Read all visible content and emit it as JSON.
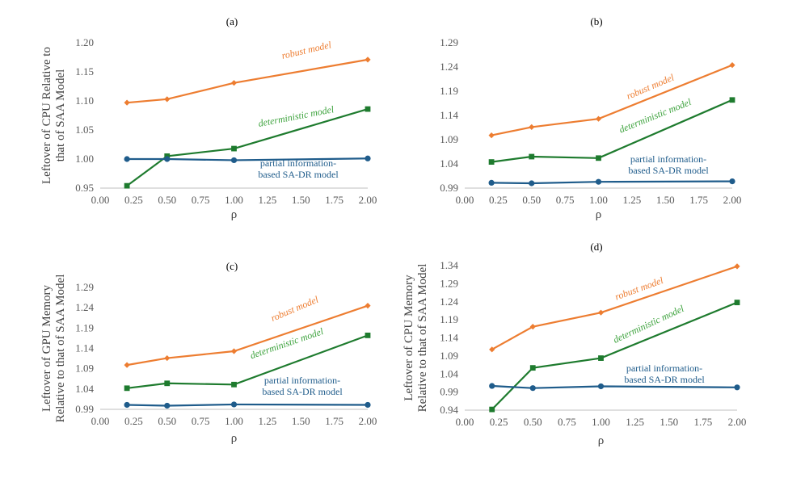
{
  "chart_data": [
    {
      "type": "line",
      "panel": "(a)",
      "xlabel": "ρ",
      "ylabel_lines": [
        "Leftover of CPU Relative to",
        "that of SAA Model"
      ],
      "xlim": [
        0,
        2
      ],
      "xticks": [
        "0.00",
        "0.25",
        "0.50",
        "0.75",
        "1.00",
        "1.25",
        "1.50",
        "1.75",
        "2.00"
      ],
      "ylim": [
        0.95,
        1.2
      ],
      "yticks": [
        "0.95",
        "1.00",
        "1.05",
        "1.10",
        "1.15",
        "1.20"
      ],
      "grid": false,
      "x": [
        0.2,
        0.5,
        1.0,
        2.0
      ],
      "series": [
        {
          "name": "robust model",
          "values": [
            1.097,
            1.103,
            1.131,
            1.171
          ],
          "color": "#ED7D31",
          "marker": "diamond"
        },
        {
          "name": "deterministic model",
          "values": [
            0.954,
            1.005,
            1.018,
            1.086
          ],
          "color": "#1E7B2E",
          "marker": "square"
        },
        {
          "name": "partial information-based SA-DR model",
          "values": [
            1.0,
            1.0,
            0.998,
            1.001
          ],
          "color": "#1F5C8B",
          "marker": "circle"
        }
      ],
      "annotations": [
        {
          "series": 0,
          "lines": [
            "robust model"
          ],
          "color": "#ED7D31",
          "italic": true
        },
        {
          "series": 1,
          "lines": [
            "deterministic model"
          ],
          "color": "#3EA33E",
          "italic": true
        },
        {
          "series": 2,
          "lines": [
            "partial information-",
            "based SA-DR model"
          ],
          "color": "#1F5C8B",
          "italic": false
        }
      ]
    },
    {
      "type": "line",
      "panel": "(b)",
      "xlabel": "ρ",
      "ylabel_lines": [],
      "xlim": [
        0,
        2
      ],
      "xticks": [
        "0.00",
        "0.25",
        "0.50",
        "0.75",
        "1.00",
        "1.25",
        "1.50",
        "1.75",
        "2.00"
      ],
      "ylim": [
        0.99,
        1.29
      ],
      "yticks": [
        "0.99",
        "1.04",
        "1.09",
        "1.14",
        "1.19",
        "1.24",
        "1.29"
      ],
      "grid": false,
      "x": [
        0.2,
        0.5,
        1.0,
        2.0
      ],
      "series": [
        {
          "name": "robust model",
          "values": [
            1.099,
            1.116,
            1.133,
            1.244
          ],
          "color": "#ED7D31",
          "marker": "diamond"
        },
        {
          "name": "deterministic model",
          "values": [
            1.044,
            1.055,
            1.052,
            1.172
          ],
          "color": "#1E7B2E",
          "marker": "square"
        },
        {
          "name": "partial information-based SA-DR model",
          "values": [
            1.001,
            1.0,
            1.003,
            1.004
          ],
          "color": "#1F5C8B",
          "marker": "circle"
        }
      ],
      "annotations": [
        {
          "series": 0,
          "lines": [
            "robust model"
          ],
          "color": "#ED7D31",
          "italic": true
        },
        {
          "series": 1,
          "lines": [
            "deterministic model"
          ],
          "color": "#3EA33E",
          "italic": true
        },
        {
          "series": 2,
          "lines": [
            "partial information-",
            "based SA-DR model"
          ],
          "color": "#1F5C8B",
          "italic": false
        }
      ]
    },
    {
      "type": "line",
      "panel": "(c)",
      "xlabel": "ρ",
      "ylabel_lines": [
        "Leftover of GPU Memory",
        "Relative to that of SAA Model"
      ],
      "xlim": [
        0,
        2
      ],
      "xticks": [
        "0.00",
        "0.25",
        "0.50",
        "0.75",
        "1.00",
        "1.25",
        "1.50",
        "1.75",
        "2.00"
      ],
      "ylim": [
        0.99,
        1.29
      ],
      "yticks": [
        "0.99",
        "1.04",
        "1.09",
        "1.14",
        "1.19",
        "1.24",
        "1.29"
      ],
      "grid": false,
      "x": [
        0.2,
        0.5,
        1.0,
        2.0
      ],
      "series": [
        {
          "name": "robust model",
          "values": [
            1.099,
            1.116,
            1.133,
            1.245
          ],
          "color": "#ED7D31",
          "marker": "diamond"
        },
        {
          "name": "deterministic model",
          "values": [
            1.042,
            1.054,
            1.051,
            1.172
          ],
          "color": "#1E7B2E",
          "marker": "square"
        },
        {
          "name": "partial information-based SA-DR model",
          "values": [
            1.001,
            0.999,
            1.002,
            1.001
          ],
          "color": "#1F5C8B",
          "marker": "circle"
        }
      ],
      "annotations": [
        {
          "series": 0,
          "lines": [
            "robust model"
          ],
          "color": "#ED7D31",
          "italic": true
        },
        {
          "series": 1,
          "lines": [
            "deterministic model"
          ],
          "color": "#3EA33E",
          "italic": true
        },
        {
          "series": 2,
          "lines": [
            "partial information-",
            "based SA-DR model"
          ],
          "color": "#1F5C8B",
          "italic": false
        }
      ]
    },
    {
      "type": "line",
      "panel": "(d)",
      "xlabel": "ρ",
      "ylabel_lines": [
        "Leftover of CPU Memory",
        "Relative to that of SAA Model"
      ],
      "xlim": [
        0,
        2
      ],
      "xticks": [
        "0.00",
        "0.25",
        "0.50",
        "0.75",
        "1.00",
        "1.25",
        "1.50",
        "1.75",
        "2.00"
      ],
      "ylim": [
        0.94,
        1.34
      ],
      "yticks": [
        "0.94",
        "0.99",
        "1.04",
        "1.09",
        "1.14",
        "1.19",
        "1.24",
        "1.29",
        "1.34"
      ],
      "grid": false,
      "x": [
        0.2,
        0.5,
        1.0,
        2.0
      ],
      "series": [
        {
          "name": "robust model",
          "values": [
            1.108,
            1.171,
            1.21,
            1.338
          ],
          "color": "#ED7D31",
          "marker": "diamond"
        },
        {
          "name": "deterministic model",
          "values": [
            0.942,
            1.057,
            1.084,
            1.238
          ],
          "color": "#1E7B2E",
          "marker": "square"
        },
        {
          "name": "partial information-based SA-DR model",
          "values": [
            1.007,
            1.001,
            1.006,
            1.003
          ],
          "color": "#1F5C8B",
          "marker": "circle"
        }
      ],
      "annotations": [
        {
          "series": 0,
          "lines": [
            "robust model"
          ],
          "color": "#ED7D31",
          "italic": true
        },
        {
          "series": 1,
          "lines": [
            "deterministic model"
          ],
          "color": "#3EA33E",
          "italic": true
        },
        {
          "series": 2,
          "lines": [
            "partial information-",
            "based SA-DR model"
          ],
          "color": "#1F5C8B",
          "italic": false
        }
      ]
    }
  ]
}
